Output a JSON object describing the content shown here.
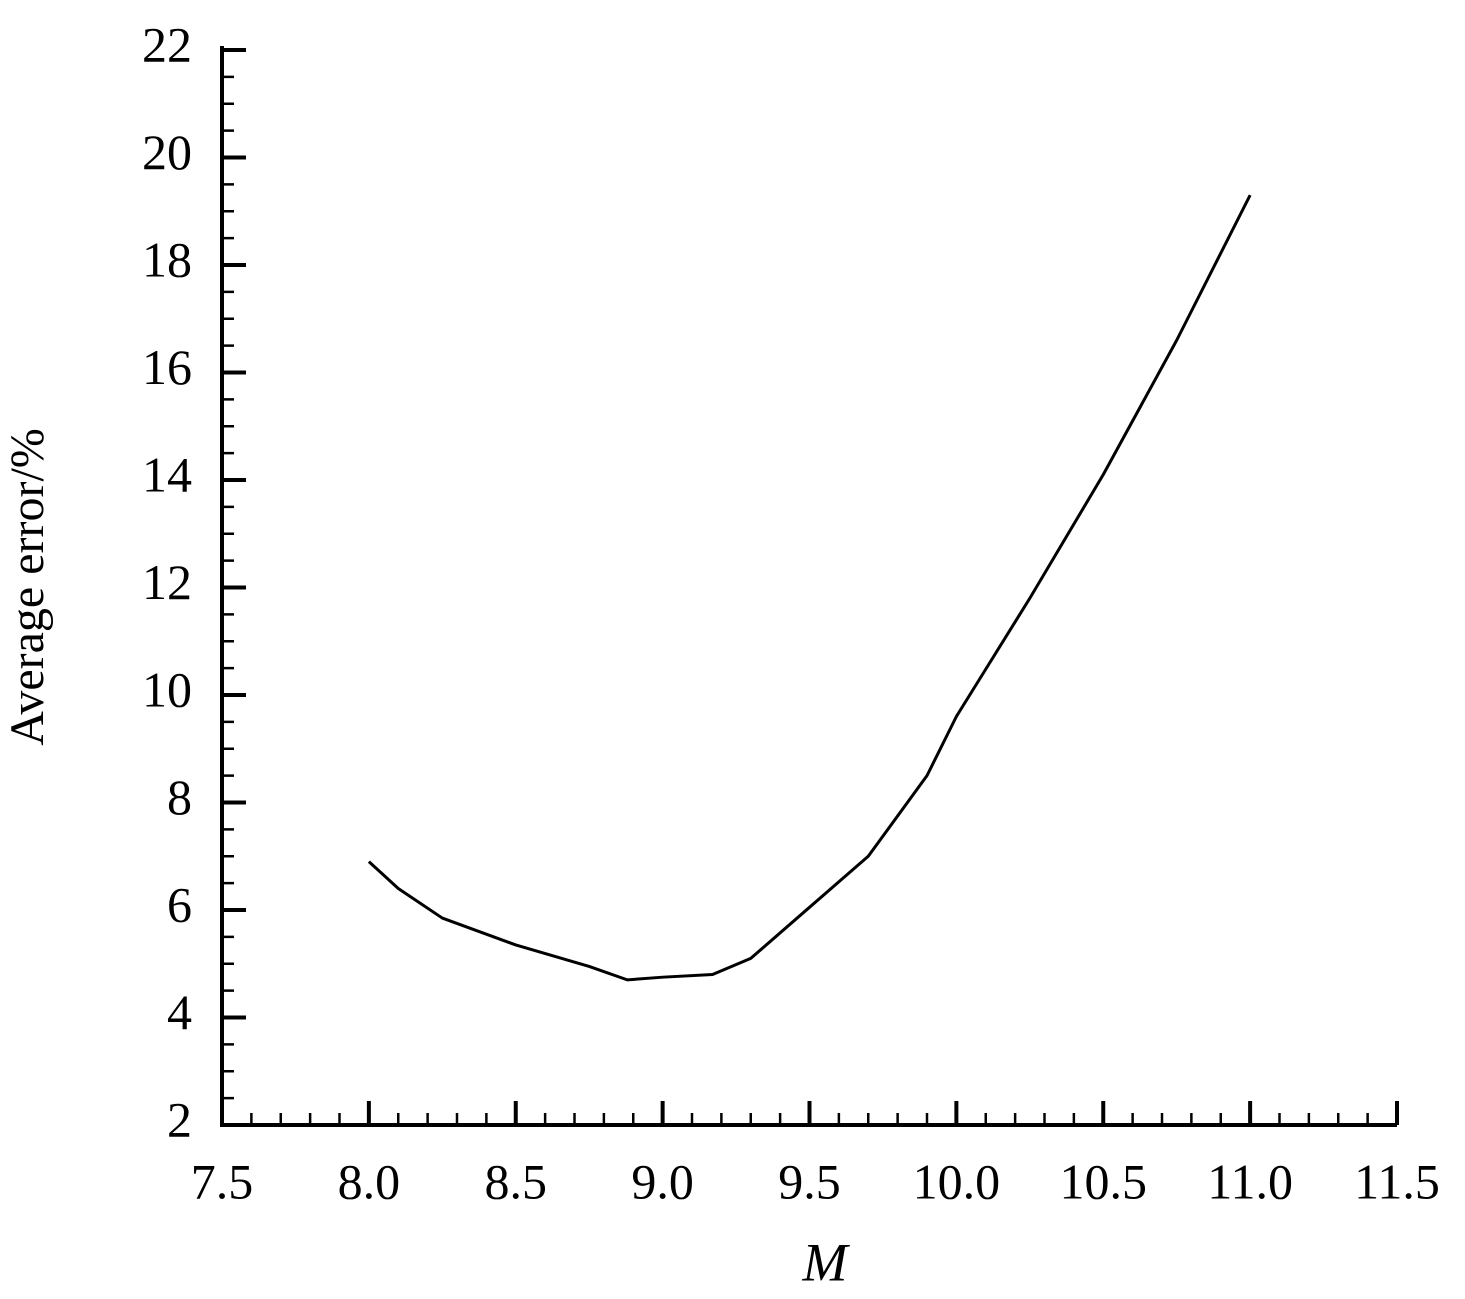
{
  "chart_data": {
    "type": "line",
    "x_label": "M",
    "y_label": "Average error/%",
    "series": [
      {
        "color": "#000000",
        "x": [
          8.0,
          8.1,
          8.25,
          8.5,
          8.75,
          8.88,
          9.0,
          9.17,
          9.3,
          9.5,
          9.7,
          9.9,
          10.0,
          10.25,
          10.5,
          10.75,
          11.0
        ],
        "values": [
          6.9,
          6.4,
          5.85,
          5.35,
          4.95,
          4.7,
          4.75,
          4.8,
          5.1,
          6.05,
          7.0,
          8.5,
          9.6,
          11.8,
          14.1,
          16.6,
          19.3
        ]
      }
    ],
    "xlim": [
      7.5,
      11.5
    ],
    "xticks": [
      7.5,
      {
        "value": 8,
        "label": "8.0"
      },
      8.5,
      {
        "value": 9,
        "label": "9.0"
      },
      9.5,
      {
        "value": 10,
        "label": "10.0"
      },
      10.5,
      {
        "value": 11,
        "label": "11.0"
      },
      11.5
    ],
    "ylim": [
      2,
      22
    ],
    "yticks": [
      2,
      4,
      6,
      8,
      10,
      12,
      14,
      16,
      18,
      20,
      22
    ],
    "grid": false
  }
}
